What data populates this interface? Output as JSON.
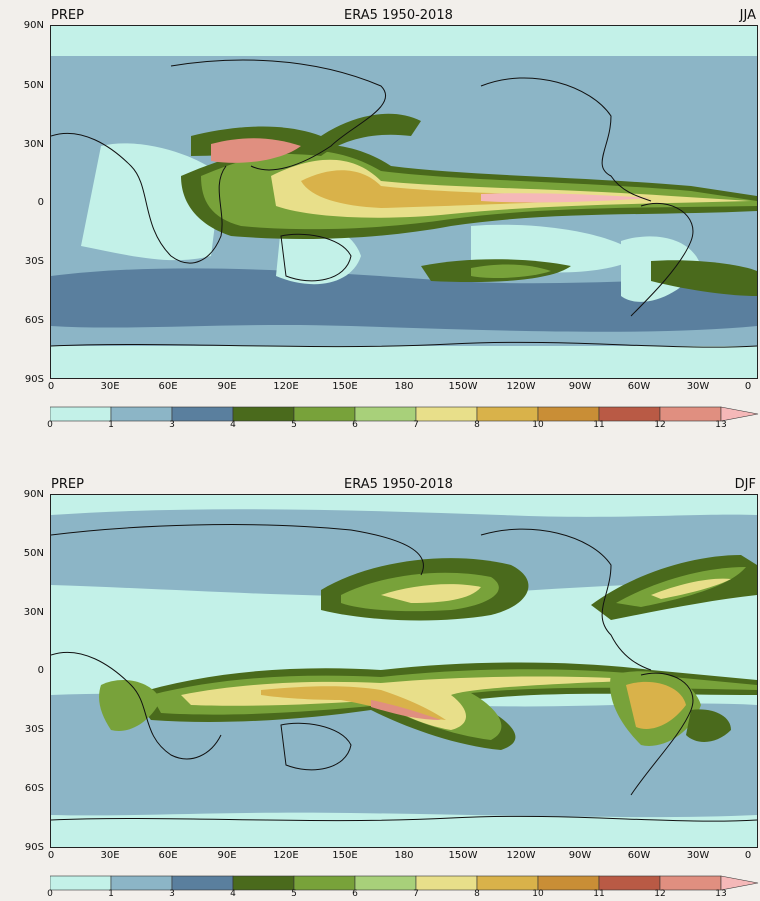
{
  "panels": [
    {
      "id": "jja",
      "variable_label": "PREP",
      "title": "ERA5 1950-2018",
      "season": "JJA",
      "lat_ticks": [
        "90N",
        "50N",
        "30N",
        "0",
        "30S",
        "60S",
        "90S"
      ],
      "lon_ticks": [
        "0",
        "30E",
        "60E",
        "90E",
        "120E",
        "150E",
        "180",
        "150W",
        "120W",
        "90W",
        "60W",
        "30W",
        "0"
      ]
    },
    {
      "id": "djf",
      "variable_label": "PREP",
      "title": "ERA5 1950-2018",
      "season": "DJF",
      "lat_ticks": [
        "90N",
        "50N",
        "30N",
        "0",
        "30S",
        "60S",
        "90S"
      ],
      "lon_ticks": [
        "0",
        "30E",
        "60E",
        "90E",
        "120E",
        "150E",
        "180",
        "150W",
        "120W",
        "90W",
        "60W",
        "30W",
        "0"
      ]
    }
  ],
  "colorbar": {
    "levels": [
      "0",
      "1",
      "3",
      "4",
      "5",
      "6",
      "7",
      "8",
      "10",
      "11",
      "12",
      "13"
    ],
    "colors": [
      "#c3f1e8",
      "#8cb5c6",
      "#5a7f9e",
      "#4a6a1c",
      "#78a23a",
      "#a8d07a",
      "#e8df8a",
      "#d9b24a",
      "#c98e36",
      "#b95a45",
      "#e08f80",
      "#f5b8b8"
    ]
  },
  "legend_colors": {
    "low": "#c3f1e8",
    "light_blue": "#8cb5c6",
    "dark_blue": "#5a7f9e",
    "dark_green": "#4a6a1c",
    "green": "#78a23a",
    "light_green": "#a8d07a",
    "yellow": "#e8df8a",
    "gold": "#d9b24a",
    "orange": "#c98e36",
    "red": "#b95a45",
    "salmon": "#e08f80",
    "pink": "#f5b8b8"
  }
}
